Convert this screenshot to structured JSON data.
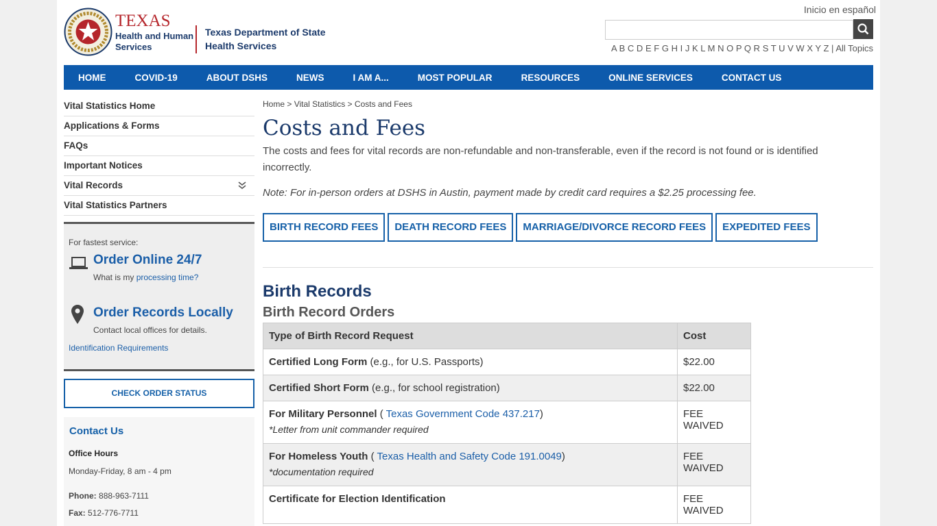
{
  "header": {
    "logo_title": "TEXAS",
    "logo_line1": "Health and Human",
    "logo_line2": "Services",
    "dept_line1": "Texas Department of State",
    "dept_line2": "Health Services",
    "spanish": "Inicio en español",
    "letters": [
      "A",
      "B",
      "C",
      "D",
      "E",
      "F",
      "G",
      "H",
      "I",
      "J",
      "K",
      "L",
      "M",
      "N",
      "O",
      "P",
      "Q",
      "R",
      "S",
      "T",
      "U",
      "V",
      "W",
      "X",
      "Y",
      "Z"
    ],
    "separator": "|",
    "all_topics": "All Topics"
  },
  "nav": [
    "HOME",
    "COVID-19",
    "ABOUT DSHS",
    "NEWS",
    "I AM A...",
    "MOST POPULAR",
    "RESOURCES",
    "ONLINE SERVICES",
    "CONTACT US"
  ],
  "sidebar": {
    "links": [
      "Vital Statistics Home",
      "Applications & Forms",
      "FAQs",
      "Important Notices",
      "Vital Records",
      "Vital Statistics Partners"
    ],
    "service": {
      "intro": "For fastest service:",
      "online": "Order Online 24/7",
      "question": "What is my",
      "processing": "processing time?",
      "local": "Order Records Locally",
      "local_note": "Contact local offices for details.",
      "id_req": "Identification Requirements"
    },
    "status_button": "CHECK ORDER STATUS",
    "contact": {
      "title": "Contact Us",
      "hours_label": "Office Hours",
      "hours": "Monday-Friday, 8 am - 4 pm",
      "phone_label": "Phone:",
      "phone": "888-963-7111",
      "fax_label": "Fax:",
      "fax": "512-776-7711"
    }
  },
  "main": {
    "breadcrumb": [
      "Home",
      "Vital Statistics",
      "Costs and Fees"
    ],
    "breadcrumb_sep": ">",
    "title": "Costs and Fees",
    "intro": "The costs and fees for vital records are non-refundable and non-transferable, even if the record is not found or is identified incorrectly.",
    "note": "Note: For in-person orders at DSHS in Austin, payment made by credit card requires a $2.25 processing fee.",
    "tabs": [
      "BIRTH RECORD FEES",
      "DEATH RECORD FEES",
      "MARRIAGE/DIVORCE RECORD FEES",
      "EXPEDITED FEES"
    ],
    "section": "Birth Records",
    "subsection": "Birth Record Orders",
    "table": {
      "header": [
        "Type of Birth Record Request",
        "Cost"
      ],
      "rows": [
        {
          "label": "Certified Long Form",
          "detail": " (e.g., for U.S. Passports)",
          "cost": "$22.00"
        },
        {
          "label": "Certified Short Form",
          "detail": " (e.g., for school registration)",
          "cost": "$22.00"
        },
        {
          "label": "For Military Personnel",
          "detail": " ( ",
          "link": "Texas Government Code 437.217",
          "close": ")",
          "note": "*Letter from unit commander required",
          "cost": "FEE WAIVED"
        },
        {
          "label": "For Homeless Youth",
          "detail": " ( ",
          "link": "Texas Health and Safety Code 191.0049",
          "close": ")",
          "note": "*documentation required",
          "cost": "FEE WAIVED"
        },
        {
          "label": "Certificate for Election Identification",
          "cost": "FEE WAIVED"
        }
      ]
    }
  }
}
